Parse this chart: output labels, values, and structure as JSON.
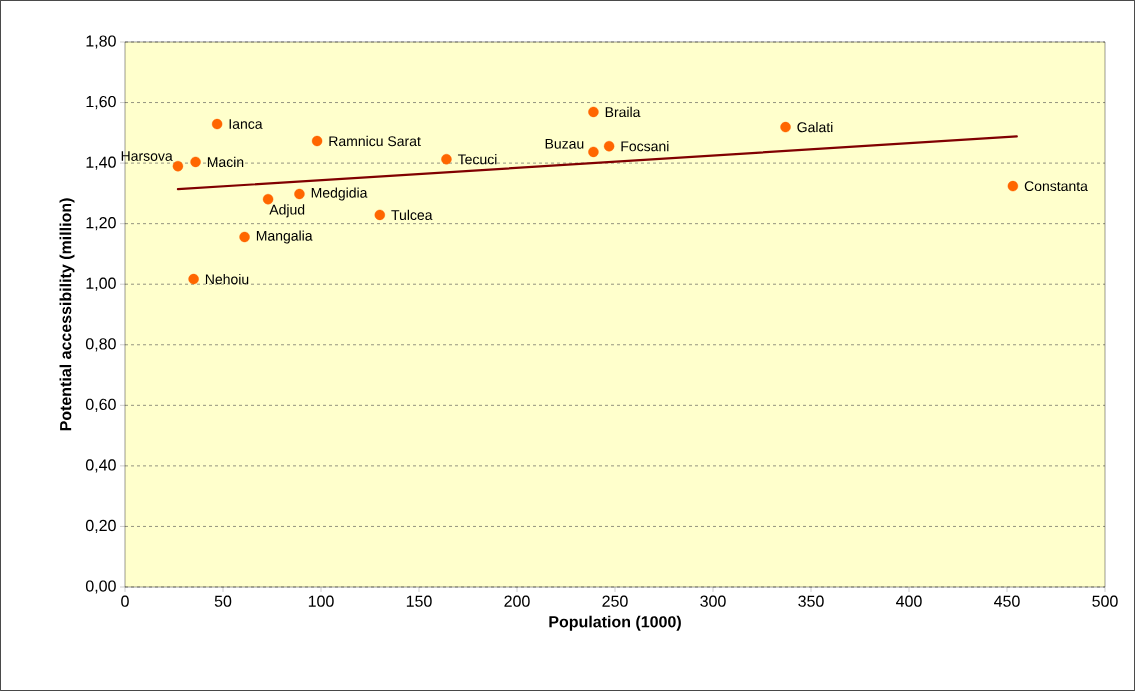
{
  "chart_data": {
    "type": "scatter",
    "xlabel": "Population (1000)",
    "ylabel": "Potential accessibility (million)",
    "xlim": [
      0,
      500
    ],
    "xticks": [
      0,
      50,
      100,
      150,
      200,
      250,
      300,
      350,
      400,
      450,
      500
    ],
    "ylim": [
      0,
      1.8
    ],
    "yticks": [
      {
        "value": 0,
        "label": "0,00"
      },
      {
        "value": 0.2,
        "label": "0,20"
      },
      {
        "value": 0.4,
        "label": "0,40"
      },
      {
        "value": 0.6,
        "label": "0,60"
      },
      {
        "value": 0.8,
        "label": "0,80"
      },
      {
        "value": 1.0,
        "label": "1,00"
      },
      {
        "value": 1.2,
        "label": "1,20"
      },
      {
        "value": 1.4,
        "label": "1,40"
      },
      {
        "value": 1.6,
        "label": "1,60"
      },
      {
        "value": 1.8,
        "label": "1,80"
      }
    ],
    "grid": "y",
    "series": [
      {
        "color": "#ff6600",
        "marker": "circle",
        "x": [
          27,
          36,
          47,
          98,
          164,
          239,
          239,
          247,
          337,
          453,
          73,
          89,
          130,
          61,
          35
        ],
        "values": [
          1.39,
          1.404,
          1.529,
          1.473,
          1.413,
          1.569,
          1.437,
          1.456,
          1.519,
          1.324,
          1.281,
          1.298,
          1.229,
          1.156,
          1.017
        ]
      },
      {
        "type": "line",
        "color": "#800000",
        "marker": "none",
        "line_style": "solid",
        "x": [
          27,
          455
        ],
        "values": [
          1.314,
          1.488
        ]
      }
    ],
    "annotations": [
      {
        "text": "Harsova",
        "x": 27,
        "y": 1.39
      },
      {
        "text": "Macin",
        "x": 36,
        "y": 1.404
      },
      {
        "text": "Ianca",
        "x": 47,
        "y": 1.529
      },
      {
        "text": "Ramnicu Sarat",
        "x": 98,
        "y": 1.473
      },
      {
        "text": "Tecuci",
        "x": 164,
        "y": 1.413
      },
      {
        "text": "Braila",
        "x": 239,
        "y": 1.569
      },
      {
        "text": "Buzau",
        "x": 239,
        "y": 1.437
      },
      {
        "text": "Focsani",
        "x": 247,
        "y": 1.456
      },
      {
        "text": "Galati",
        "x": 337,
        "y": 1.519
      },
      {
        "text": "Constanta",
        "x": 453,
        "y": 1.324
      },
      {
        "text": "Adjud",
        "x": 73,
        "y": 1.281
      },
      {
        "text": "Medgidia",
        "x": 89,
        "y": 1.298
      },
      {
        "text": "Tulcea",
        "x": 130,
        "y": 1.229
      },
      {
        "text": "Mangalia",
        "x": 61,
        "y": 1.156
      },
      {
        "text": "Nehoiu",
        "x": 35,
        "y": 1.017
      }
    ]
  }
}
